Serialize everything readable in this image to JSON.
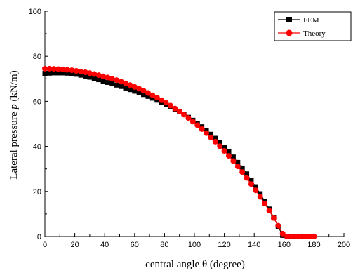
{
  "chart_data": {
    "type": "line",
    "xlabel": "central angle θ (degree)",
    "ylabel_prefix": "Lateral pressure ",
    "ylabel_var": "p",
    "ylabel_suffix": " (kN/m)",
    "xlim": [
      0,
      200
    ],
    "ylim": [
      0,
      100
    ],
    "xticks": [
      0,
      20,
      40,
      60,
      80,
      100,
      120,
      140,
      160,
      180,
      200
    ],
    "yticks": [
      0,
      20,
      40,
      60,
      80,
      100
    ],
    "grid": false,
    "legend_position": "top-right",
    "series": [
      {
        "name": "FEM",
        "color": "#000000",
        "marker": "square",
        "x": [
          0,
          3,
          6,
          9,
          12,
          15,
          18,
          21,
          24,
          27,
          30,
          33,
          36,
          39,
          42,
          45,
          48,
          51,
          54,
          57,
          60,
          63,
          66,
          69,
          72,
          75,
          78,
          81,
          84,
          87,
          90,
          93,
          96,
          99,
          102,
          105,
          108,
          111,
          114,
          117,
          120,
          123,
          126,
          129,
          132,
          135,
          138,
          141,
          144,
          147,
          150,
          153,
          156,
          159,
          162,
          165,
          168,
          171,
          174,
          177,
          179
        ],
        "values": [
          72.4,
          72.5,
          72.6,
          72.6,
          72.6,
          72.5,
          72.3,
          72.0,
          71.6,
          71.2,
          70.7,
          70.2,
          69.6,
          69.0,
          68.4,
          67.8,
          67.2,
          66.6,
          65.9,
          65.2,
          64.5,
          63.8,
          63.0,
          62.2,
          61.4,
          60.5,
          59.6,
          58.6,
          57.6,
          56.5,
          55.4,
          54.2,
          52.9,
          51.6,
          50.2,
          48.7,
          47.1,
          45.4,
          43.6,
          41.7,
          39.7,
          37.6,
          35.3,
          32.9,
          30.4,
          27.8,
          25.0,
          22.1,
          19.0,
          15.7,
          12.2,
          8.5,
          4.5,
          0.5,
          0.0,
          0.0,
          0.0,
          0.0,
          0.0,
          0.0,
          0.0
        ]
      },
      {
        "name": "Theory",
        "color": "#ff0000",
        "marker": "circle",
        "x": [
          0,
          3,
          6,
          9,
          12,
          15,
          18,
          21,
          24,
          27,
          30,
          33,
          36,
          39,
          42,
          45,
          48,
          51,
          54,
          57,
          60,
          63,
          66,
          69,
          72,
          75,
          78,
          81,
          84,
          87,
          90,
          93,
          96,
          99,
          102,
          105,
          108,
          111,
          114,
          117,
          120,
          123,
          126,
          129,
          132,
          135,
          138,
          141,
          144,
          147,
          150,
          153,
          156,
          159,
          162,
          165,
          168,
          171,
          174,
          177,
          180
        ],
        "values": [
          74.5,
          74.5,
          74.4,
          74.3,
          74.2,
          74.0,
          73.8,
          73.5,
          73.2,
          72.9,
          72.5,
          72.1,
          71.6,
          71.1,
          70.6,
          70.0,
          69.4,
          68.7,
          68.0,
          67.2,
          66.4,
          65.6,
          64.7,
          63.7,
          62.7,
          61.7,
          60.5,
          59.4,
          58.1,
          56.8,
          55.5,
          54.1,
          52.6,
          51.0,
          49.4,
          47.7,
          45.9,
          44.0,
          42.1,
          40.1,
          38.0,
          35.8,
          33.5,
          31.1,
          28.6,
          26.0,
          23.3,
          20.5,
          17.6,
          14.6,
          11.5,
          8.2,
          4.8,
          1.3,
          0.0,
          0.0,
          0.0,
          0.0,
          0.0,
          0.0,
          0.0
        ]
      }
    ]
  }
}
